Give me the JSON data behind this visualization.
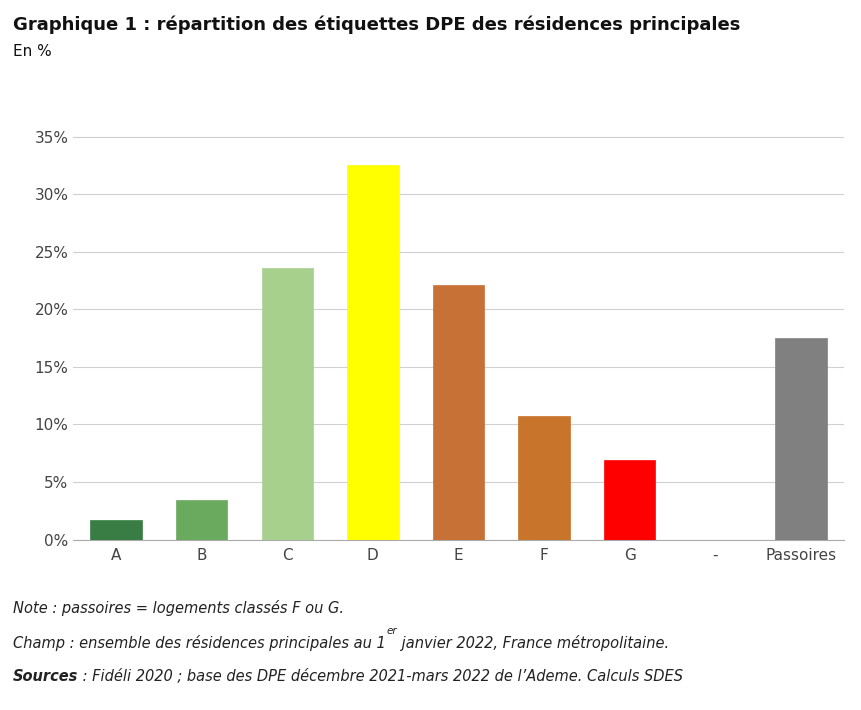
{
  "title_line1": "Graphique 1 : répartition des étiquettes DPE des résidences principales",
  "title_line2": "En %",
  "categories": [
    "A",
    "B",
    "C",
    "D",
    "E",
    "F",
    "G",
    "-",
    "Passoires"
  ],
  "values": [
    1.7,
    3.4,
    23.6,
    32.5,
    22.1,
    10.7,
    6.9,
    0.0,
    17.5
  ],
  "bar_colors": [
    "#3a7d44",
    "#6aaa5e",
    "#a8d08d",
    "#ffff00",
    "#c87137",
    "#c8742a",
    "#ff0000",
    "#ffffff",
    "#808080"
  ],
  "ylim_max": 37.0,
  "yticks": [
    0,
    5,
    10,
    15,
    20,
    25,
    30,
    35
  ],
  "ytick_labels": [
    "0%",
    "5%",
    "10%",
    "15%",
    "20%",
    "25%",
    "30%",
    "35%"
  ],
  "background_color": "#ffffff",
  "grid_color": "#d0d0d0",
  "note1": "Note : passoires = logements classés F ou G.",
  "champ_pre": "Champ : ensemble des résidences principales au 1",
  "champ_super": "er",
  "champ_post": " janvier 2022, France métropolitaine.",
  "sources_bold": "Sources",
  "sources_rest": " : Fidéli 2020 ; base des DPE décembre 2021-mars 2022 de l’Ademe. Calculs SDES",
  "title_fontsize": 13,
  "subtitle_fontsize": 11,
  "tick_fontsize": 11,
  "note_fontsize": 10.5
}
